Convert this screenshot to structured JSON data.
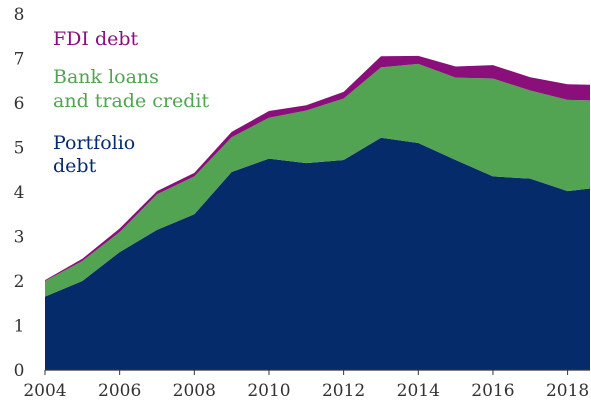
{
  "chart_data": {
    "type": "area",
    "stacked": true,
    "x": [
      2004,
      2005,
      2006,
      2007,
      2008,
      2009,
      2010,
      2011,
      2012,
      2013,
      2014,
      2015,
      2016,
      2017,
      2018,
      2018.6
    ],
    "ylim": [
      0,
      8
    ],
    "xlim": [
      2004,
      2018.6
    ],
    "x_ticks": [
      "2004",
      "2006",
      "2008",
      "2010",
      "2012",
      "2014",
      "2016",
      "2018"
    ],
    "y_ticks": [
      "0",
      "1",
      "2",
      "3",
      "4",
      "5",
      "6",
      "7",
      "8"
    ],
    "grid": false,
    "series": [
      {
        "name": "Portfolio debt",
        "label_lines": [
          "Portfolio",
          "debt"
        ],
        "color": "#062b6b",
        "values": [
          1.65,
          2.0,
          2.65,
          3.15,
          3.5,
          4.45,
          4.75,
          4.65,
          4.72,
          5.22,
          5.1,
          4.72,
          4.35,
          4.3,
          4.02,
          4.08
        ]
      },
      {
        "name": "Bank loans and trade credit",
        "label_lines": [
          "Bank loans",
          "and trade credit"
        ],
        "color": "#52a352",
        "values": [
          0.35,
          0.45,
          0.45,
          0.8,
          0.85,
          0.78,
          0.92,
          1.18,
          1.38,
          1.58,
          1.78,
          1.85,
          2.2,
          1.98,
          2.05,
          1.98
        ]
      },
      {
        "name": "FDI debt",
        "label_lines": [
          "FDI debt"
        ],
        "color": "#8b0f7a",
        "values": [
          0.02,
          0.05,
          0.08,
          0.07,
          0.08,
          0.12,
          0.15,
          0.12,
          0.15,
          0.25,
          0.18,
          0.25,
          0.3,
          0.3,
          0.35,
          0.35
        ]
      }
    ]
  }
}
